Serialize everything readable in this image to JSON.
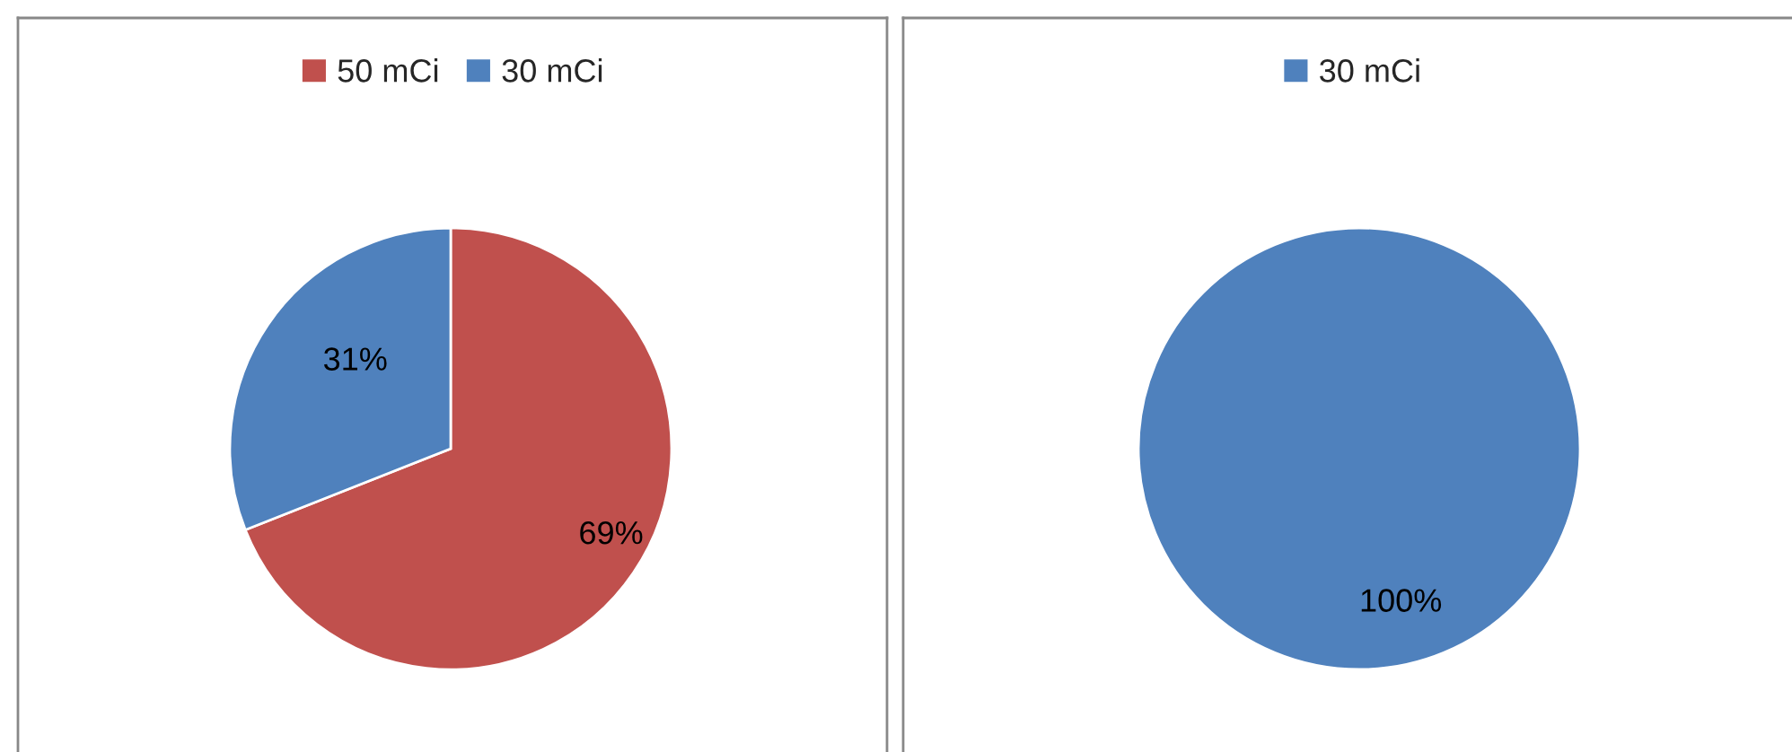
{
  "chart_data": [
    {
      "type": "pie",
      "categories": [
        "50 mCi",
        "30 mCi"
      ],
      "values": [
        69,
        31
      ],
      "colors": [
        "#c0504d",
        "#4f81bd"
      ],
      "value_labels": [
        "69%",
        "31%"
      ],
      "legend": "top"
    },
    {
      "type": "pie",
      "categories": [
        "30 mCi"
      ],
      "values": [
        100
      ],
      "colors": [
        "#4f81bd"
      ],
      "value_labels": [
        "100%"
      ],
      "legend": "top"
    }
  ]
}
